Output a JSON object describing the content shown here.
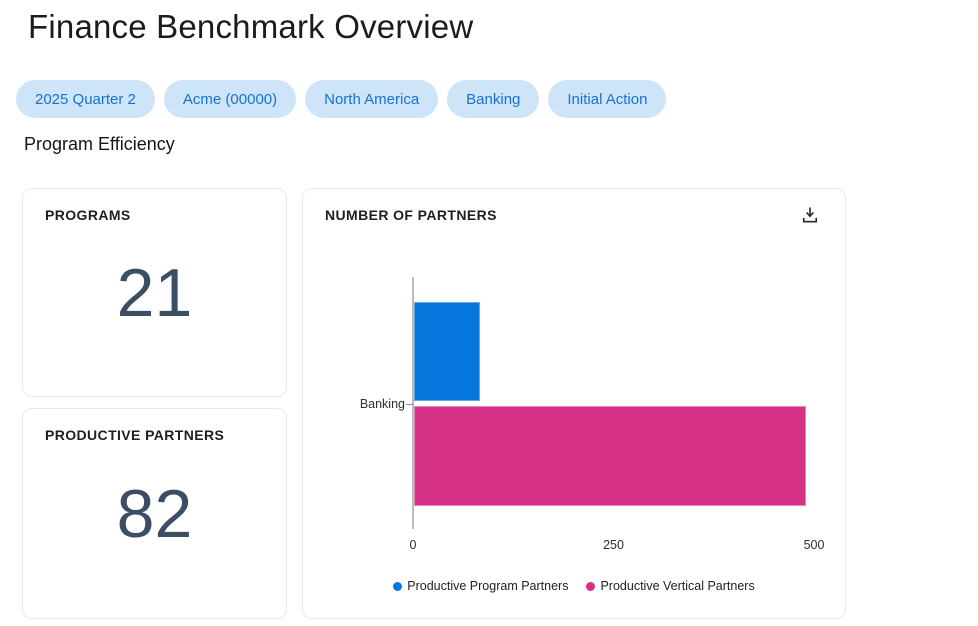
{
  "page": {
    "title": "Finance Benchmark Overview",
    "section_heading": "Program Efficiency"
  },
  "filters": {
    "chips": [
      {
        "label": "2025 Quarter 2"
      },
      {
        "label": "Acme (00000)"
      },
      {
        "label": "North America"
      },
      {
        "label": "Banking"
      },
      {
        "label": "Initial Action"
      }
    ]
  },
  "kpis": [
    {
      "label": "PROGRAMS",
      "value": "21"
    },
    {
      "label": "PRODUCTIVE PARTNERS",
      "value": "82"
    }
  ],
  "chart_card": {
    "title": "NUMBER OF PARTNERS"
  },
  "chart_data": {
    "type": "bar",
    "orientation": "horizontal",
    "title": "NUMBER OF PARTNERS",
    "categories": [
      "Banking"
    ],
    "series": [
      {
        "name": "Productive Program Partners",
        "values": [
          82
        ],
        "color": "#0676dc",
        "border_color": "#6aa7e6"
      },
      {
        "name": "Productive Vertical Partners",
        "values": [
          489
        ],
        "color": "#d53287",
        "border_color": "#e287b8"
      }
    ],
    "xlabel": "",
    "ylabel": "",
    "xlim": [
      0,
      500
    ],
    "x_ticks": [
      0,
      250,
      500
    ],
    "grid": false,
    "legend_position": "bottom"
  },
  "colors": {
    "chip_background": "#cde4f9",
    "chip_text": "#1673d3",
    "kpi_value_text": "#3c4e63",
    "series_blue": "#0676dc",
    "series_pink": "#d53287"
  }
}
